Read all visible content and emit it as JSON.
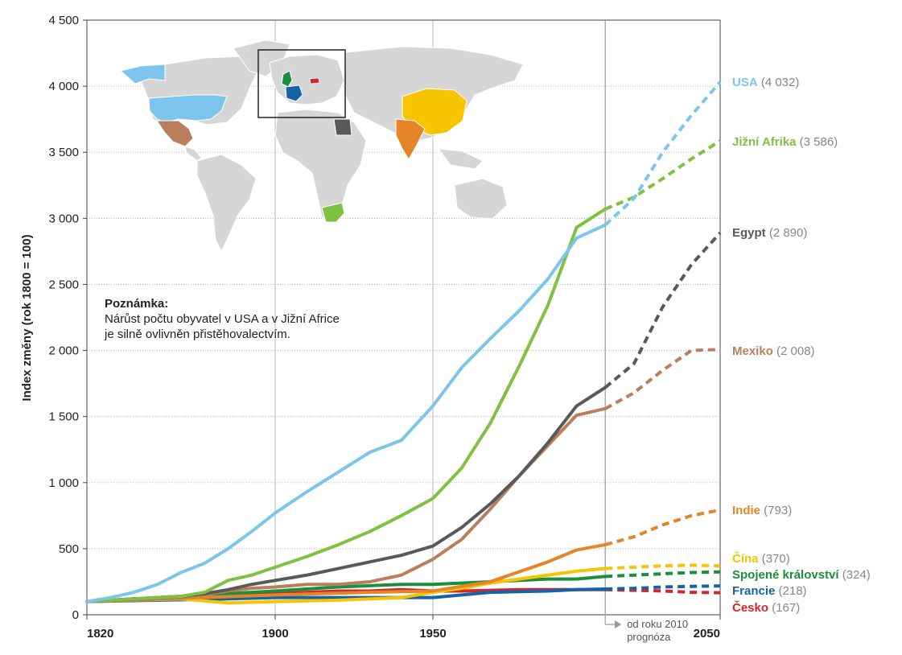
{
  "chart_data": {
    "type": "line",
    "ylabel": "Index změny (rok 1800 = 100)",
    "ylim": [
      0,
      4500
    ],
    "xlim": [
      1820,
      2050
    ],
    "y_ticks": [
      0,
      500,
      1000,
      1500,
      2000,
      2500,
      3000,
      3500,
      4000,
      4500
    ],
    "y_tick_labels": [
      "0",
      "500",
      "1 000",
      "1 500",
      "2 000",
      "2 500",
      "3 000",
      "3 500",
      "4 000",
      "4 500"
    ],
    "x_ticks": [
      1820,
      1900,
      1950,
      2050
    ],
    "x_tick_labels": [
      "1820",
      "1900",
      "1950",
      "2050"
    ],
    "forecast_start": 2010,
    "forecast_label_1": "od roku 2010",
    "forecast_label_2": "prognóza",
    "grid": true,
    "legend": "right",
    "note_title": "Poznámka:",
    "note_line1": "Nárůst počtu obyvatel v USA a v Jižní Africe",
    "note_line2": "je silně ovlivněn přistěhovalectvím.",
    "series": [
      {
        "name": "USA",
        "value_label": "(4 032)",
        "color": "#7cc6ee",
        "x": [
          1820,
          1830,
          1840,
          1850,
          1860,
          1870,
          1880,
          1890,
          1900,
          1910,
          1920,
          1930,
          1940,
          1950,
          1960,
          1970,
          1980,
          1990,
          2000,
          2010,
          2020,
          2030,
          2040,
          2050
        ],
        "y": [
          100,
          130,
          170,
          230,
          320,
          390,
          500,
          630,
          770,
          930,
          1080,
          1230,
          1320,
          1580,
          1870,
          2090,
          2300,
          2540,
          2850,
          2950,
          3150,
          3500,
          3780,
          4032
        ]
      },
      {
        "name": "Jižní Afrika",
        "value_label": "(3 586)",
        "color": "#7fc241",
        "x": [
          1820,
          1840,
          1860,
          1870,
          1880,
          1890,
          1900,
          1910,
          1920,
          1930,
          1940,
          1950,
          1960,
          1970,
          1980,
          1990,
          2000,
          2010,
          2020,
          2030,
          2040,
          2050
        ],
        "y": [
          100,
          120,
          140,
          170,
          260,
          300,
          360,
          440,
          530,
          630,
          750,
          880,
          1110,
          1450,
          1880,
          2340,
          2930,
          3070,
          3160,
          3300,
          3450,
          3586
        ]
      },
      {
        "name": "Egypt",
        "value_label": "(2 890)",
        "color": "#595959",
        "x": [
          1820,
          1840,
          1860,
          1870,
          1880,
          1890,
          1900,
          1910,
          1920,
          1930,
          1940,
          1950,
          1960,
          1970,
          1980,
          1990,
          2000,
          2010,
          2020,
          2030,
          2040,
          2050
        ],
        "y": [
          100,
          120,
          140,
          160,
          190,
          230,
          260,
          300,
          350,
          400,
          450,
          520,
          660,
          840,
          1050,
          1300,
          1580,
          1720,
          1900,
          2330,
          2650,
          2890
        ]
      },
      {
        "name": "Mexiko",
        "value_label": "(2 008)",
        "color": "#b87f5a",
        "x": [
          1820,
          1840,
          1860,
          1870,
          1880,
          1890,
          1900,
          1910,
          1920,
          1930,
          1940,
          1950,
          1960,
          1970,
          1980,
          1990,
          2000,
          2010,
          2020,
          2030,
          2040,
          2050
        ],
        "y": [
          100,
          110,
          130,
          150,
          180,
          200,
          210,
          230,
          230,
          250,
          300,
          420,
          570,
          800,
          1050,
          1280,
          1510,
          1560,
          1680,
          1850,
          2000,
          2008
        ]
      },
      {
        "name": "Indie",
        "value_label": "(793)",
        "color": "#e58527",
        "x": [
          1820,
          1900,
          1930,
          1950,
          1970,
          1990,
          2000,
          2010,
          2020,
          2030,
          2040,
          2050
        ],
        "y": [
          100,
          150,
          170,
          180,
          250,
          400,
          490,
          530,
          590,
          680,
          750,
          793
        ]
      },
      {
        "name": "Čína",
        "value_label": "(370)",
        "color": "#f6c400",
        "x": [
          1820,
          1860,
          1880,
          1900,
          1920,
          1940,
          1950,
          1960,
          1970,
          1980,
          1990,
          2000,
          2010,
          2020,
          2030,
          2040,
          2050
        ],
        "y": [
          100,
          120,
          90,
          100,
          110,
          130,
          170,
          200,
          240,
          270,
          300,
          330,
          350,
          360,
          370,
          375,
          370
        ]
      },
      {
        "name": "Spojené království",
        "value_label": "(324)",
        "color": "#1a8f3e",
        "x": [
          1820,
          1850,
          1880,
          1900,
          1920,
          1940,
          1950,
          1960,
          1970,
          1980,
          1990,
          2000,
          2010,
          2020,
          2030,
          2040,
          2050
        ],
        "y": [
          100,
          130,
          160,
          180,
          210,
          230,
          230,
          240,
          250,
          260,
          270,
          270,
          290,
          300,
          310,
          320,
          324
        ]
      },
      {
        "name": "Francie",
        "value_label": "(218)",
        "color": "#1464a5",
        "x": [
          1820,
          1850,
          1880,
          1900,
          1920,
          1940,
          1950,
          1960,
          1970,
          1980,
          1990,
          2000,
          2010,
          2020,
          2030,
          2040,
          2050
        ],
        "y": [
          100,
          110,
          120,
          130,
          130,
          130,
          130,
          150,
          170,
          175,
          180,
          190,
          195,
          200,
          210,
          215,
          218
        ]
      },
      {
        "name": "Česko",
        "value_label": "(167)",
        "color": "#d4262b",
        "x": [
          1820,
          1840,
          1860,
          1880,
          1900,
          1910,
          1920,
          1930,
          1940,
          1950,
          1960,
          1970,
          1980,
          1990,
          2000,
          2010,
          2020,
          2030,
          2040,
          2050
        ],
        "y": [
          100,
          120,
          130,
          150,
          160,
          170,
          180,
          180,
          190,
          180,
          180,
          185,
          190,
          190,
          190,
          190,
          185,
          180,
          170,
          167
        ]
      }
    ]
  }
}
